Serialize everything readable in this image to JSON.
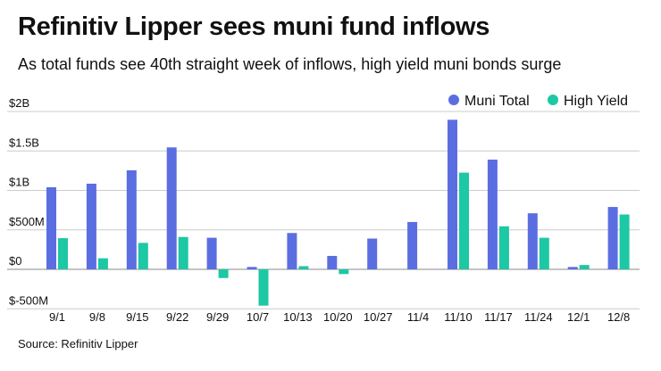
{
  "header": {
    "title": "Refinitiv Lipper sees muni fund inflows",
    "subtitle": "As total funds see 40th straight week of inflows, high yield muni bonds surge"
  },
  "footer": {
    "source": "Source: Refinitiv Lipper"
  },
  "colors": {
    "muni_total": "#5b6ee1",
    "high_yield": "#1dc8a4",
    "gridline": "#cccccc",
    "zero_line": "#888888"
  },
  "chart_data": {
    "type": "bar",
    "title": "Refinitiv Lipper sees muni fund inflows",
    "xlabel": "",
    "ylabel": "",
    "ylim": [
      -500,
      2000
    ],
    "yticks": [
      {
        "value": 2000,
        "label": "$2B"
      },
      {
        "value": 1500,
        "label": "$1.5B"
      },
      {
        "value": 1000,
        "label": "$1B"
      },
      {
        "value": 500,
        "label": "$500M"
      },
      {
        "value": 0,
        "label": "$0"
      },
      {
        "value": -500,
        "label": "$-500M"
      }
    ],
    "grid": true,
    "legend_position": "top-right",
    "categories": [
      "9/1",
      "9/8",
      "9/15",
      "9/22",
      "9/29",
      "10/7",
      "10/13",
      "10/20",
      "10/27",
      "11/4",
      "11/10",
      "11/17",
      "11/24",
      "12/1",
      "12/8"
    ],
    "series": [
      {
        "name": "Muni Total",
        "color_key": "muni_total",
        "values": [
          1040,
          1085,
          1255,
          1545,
          400,
          30,
          460,
          170,
          390,
          600,
          1895,
          1390,
          710,
          30,
          790
        ]
      },
      {
        "name": "High Yield",
        "color_key": "high_yield",
        "values": [
          395,
          140,
          335,
          410,
          -110,
          -460,
          40,
          -60,
          0,
          0,
          1225,
          545,
          400,
          55,
          695
        ]
      }
    ]
  }
}
